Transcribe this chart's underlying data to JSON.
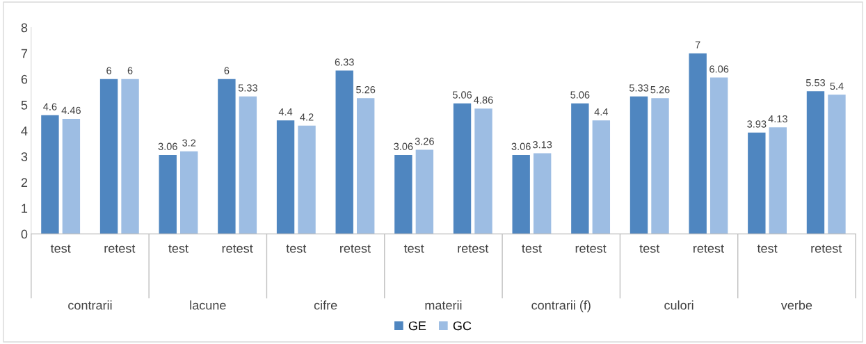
{
  "chart_data": {
    "type": "bar",
    "categories": [
      "test",
      "retest",
      "test",
      "retest",
      "test",
      "retest",
      "test",
      "retest",
      "test",
      "retest",
      "test",
      "retest",
      "test",
      "retest"
    ],
    "annotations": [
      "contrarii",
      "lacune",
      "cifre",
      "materii",
      "contrarii (f)",
      "culori",
      "verbe"
    ],
    "series": [
      {
        "name": "GE",
        "color": "#4f86c0",
        "values": [
          4.6,
          6,
          3.06,
          6,
          4.4,
          6.33,
          3.06,
          5.06,
          3.06,
          5.06,
          5.33,
          7,
          3.93,
          5.53
        ]
      },
      {
        "name": "GC",
        "color": "#9dbde3",
        "values": [
          4.46,
          6,
          3.2,
          5.33,
          4.2,
          5.26,
          3.26,
          4.86,
          3.13,
          4.4,
          5.26,
          6.06,
          4.13,
          5.4
        ]
      }
    ],
    "ylim": [
      0,
      8
    ],
    "yticks": [
      0,
      1,
      2,
      3,
      4,
      5,
      6,
      7,
      8
    ],
    "data_labels": true,
    "grid": false,
    "legend": "bottom"
  }
}
